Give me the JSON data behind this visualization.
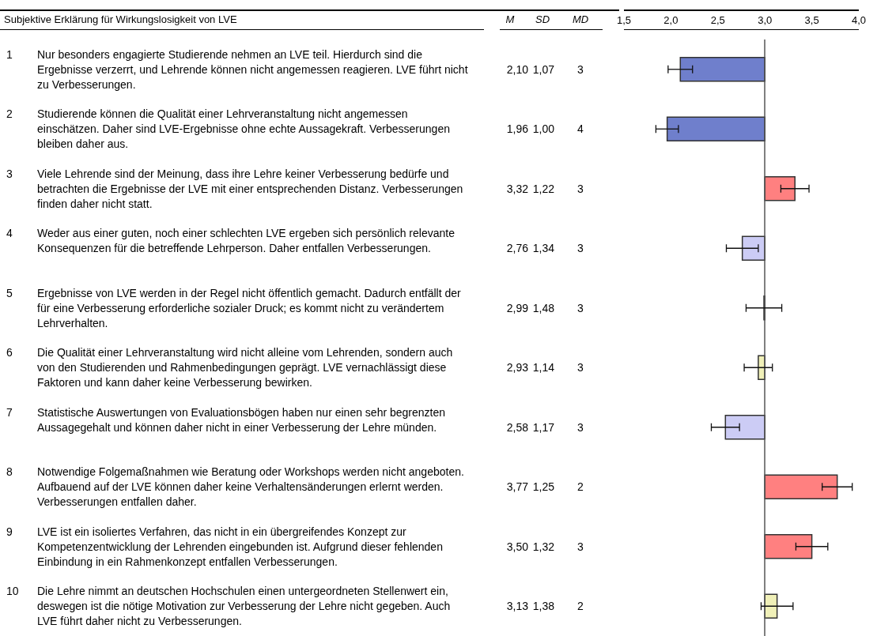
{
  "chart_data": {
    "type": "bar",
    "orientation": "horizontal",
    "categories": [
      "1 Nur besonders engagierte Studierende nehmen an LVE teil. Hierdurch sind die Ergebnisse verzerrt, und Lehrende können nicht angemessen reagieren. LVE führt nicht zu Verbesserungen.",
      "2 Studierende können die Qualität einer Lehrveranstaltung nicht angemessen einschätzen. Daher sind LVE-Ergebnisse ohne echte Aussagekraft. Verbesserungen bleiben daher aus.",
      "3 Viele Lehrende sind der Meinung, dass ihre Lehre keiner Verbesserung bedürfe und betrachten die Ergebnisse der LVE mit einer entsprechenden Distanz. Verbesserungen finden daher nicht statt.",
      "4 Weder aus einer guten, noch einer schlechten LVE ergeben sich persönlich relevante Konsequenzen für die betreffende Lehrperson. Daher entfallen Verbesserungen.",
      "5 Ergebnisse von LVE werden in der Regel nicht öffentlich gemacht. Dadurch entfällt der für eine Verbesserung erforderliche sozialer Druck; es kommt nicht zu verändertem Lehrverhalten.",
      "6 Die Qualität einer Lehrveranstaltung wird nicht alleine vom Lehrenden, sondern auch von den Studierenden und Rahmenbedingungen geprägt. LVE vernachlässigt diese Faktoren und kann daher keine Verbesserung bewirken.",
      "7 Statistische Auswertungen von Evaluationsbögen haben nur einen sehr begrenzten Aussagegehalt und können daher nicht in einer Verbesserung der Lehre münden.",
      "8 Notwendige Folgemaßnahmen wie Beratung oder Workshops werden nicht angeboten. Aufbauend auf der LVE können daher keine Verhaltensänderungen erlernt werden. Verbesserungen entfallen daher.",
      "9 LVE ist ein isoliertes Verfahren, das nicht in ein übergreifendes Konzept zur Kompetenzentwicklung der Lehrenden eingebunden ist. Aufgrund dieser fehlenden Einbindung in ein Rahmenkonzept entfallen Verbesserungen.",
      "10 Die Lehre nimmt an deutschen Hochschulen einen untergeordneten Stellenwert ein, deswegen ist die nötige Motivation zur Verbesserung der Lehre nicht gegeben. Auch LVE führt daher nicht zu Verbesserungen."
    ],
    "base": [
      3,
      3,
      3,
      3,
      3,
      3,
      3,
      3,
      3,
      3
    ],
    "values": [
      -0.9,
      -1.04,
      0.32,
      -0.24,
      -0.01,
      -0.07,
      -0.42,
      0.77,
      0.5,
      0.13
    ],
    "errors": [
      0.13,
      0.12,
      0.15,
      0.17,
      0.19,
      0.15,
      0.15,
      0.16,
      0.17,
      0.17
    ],
    "colors": [
      "#6f7fcc",
      "#6f7fcc",
      "#ff8080",
      "#ccccf5",
      "#ccccf5",
      "#f0f0b8",
      "#ccccf5",
      "#ff8080",
      "#ff8080",
      "#f0f0b8"
    ],
    "value_labels": [
      "2,10",
      "1,96",
      "3,32",
      "2,76",
      "2,99",
      "2,93",
      "2,58",
      "3,77",
      "3,50",
      "3,13"
    ],
    "annotations": [
      "Subjektive Erklärung für Wirkungslosigkeit von LVE",
      "M",
      "SD",
      "MD",
      "1,07",
      "3",
      "1,00",
      "4",
      "1,22",
      "3",
      "1,34",
      "3",
      "1,48",
      "3",
      "1,14",
      "3",
      "1,17",
      "3",
      "1,25",
      "2",
      "1,32",
      "3",
      "1,38",
      "2"
    ],
    "xlim": [
      1.5,
      4.0
    ],
    "xticks": [
      {
        "value": 1.5,
        "label": "1,5"
      },
      {
        "value": 2.0,
        "label": "2,0"
      },
      {
        "value": 2.5,
        "label": "2,5"
      },
      {
        "value": 3.0,
        "label": "3,0"
      },
      {
        "value": 3.5,
        "label": "3,5"
      },
      {
        "value": 4.0,
        "label": "4,0"
      }
    ],
    "ref_lines": [
      {
        "axis": "x",
        "value": 3,
        "label": null,
        "color": "#555555"
      }
    ],
    "grid": false
  }
}
